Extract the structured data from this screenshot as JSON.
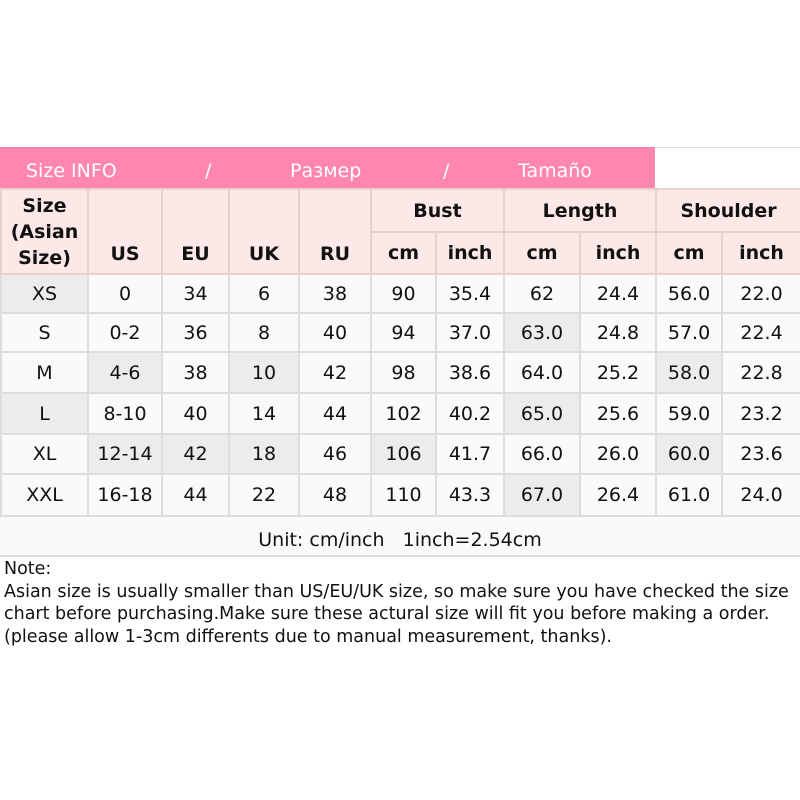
{
  "title": {
    "parts": [
      "Size INFO",
      "/",
      "Размер",
      "/",
      "Tamaño"
    ]
  },
  "headers": {
    "size": "Size (Asian Size)",
    "us": "US",
    "eu": "EU",
    "uk": "UK",
    "ru": "RU",
    "bust": "Bust",
    "length": "Length",
    "shoulder": "Shoulder",
    "cm": "cm",
    "inch": "inch"
  },
  "rows": [
    [
      "XS",
      "0",
      "34",
      "6",
      "38",
      "90",
      "35.4",
      "62",
      "24.4",
      "56.0",
      "22.0"
    ],
    [
      "S",
      "0-2",
      "36",
      "8",
      "40",
      "94",
      "37.0",
      "63.0",
      "24.8",
      "57.0",
      "22.4"
    ],
    [
      "M",
      "4-6",
      "38",
      "10",
      "42",
      "98",
      "38.6",
      "64.0",
      "25.2",
      "58.0",
      "22.8"
    ],
    [
      "L",
      "8-10",
      "40",
      "14",
      "44",
      "102",
      "40.2",
      "65.0",
      "25.6",
      "59.0",
      "23.2"
    ],
    [
      "XL",
      "12-14",
      "42",
      "18",
      "46",
      "106",
      "41.7",
      "66.0",
      "26.0",
      "60.0",
      "23.6"
    ],
    [
      "XXL",
      "16-18",
      "44",
      "22",
      "48",
      "110",
      "43.3",
      "67.0",
      "26.4",
      "61.0",
      "24.0"
    ]
  ],
  "unit": "Unit: cm/inch   1inch=2.54cm",
  "note": {
    "label": "Note:",
    "text": "Asian size is usually smaller than US/EU/UK size, so make sure you have checked the size chart before purchasing.Make sure these actural size will fit you before making a order.(please allow 1-3cm differents due to manual measurement, thanks)."
  },
  "colors": {
    "title_bg": "#ff86ad",
    "header_bg": "#fde8e8"
  }
}
